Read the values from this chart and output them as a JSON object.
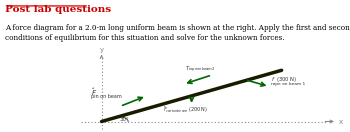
{
  "title": "Post lab questions",
  "body_text": "A force diagram for a 2.0-m long uniform beam is shown at the right. Apply the first and second\nconditions of equilibrium for this situation and solve for the unknown forces.",
  "title_color": "#cc0000",
  "text_color": "#000000",
  "bg_color": "#ffffff",
  "beam_color": "#1a1a00",
  "arrow_color": "#006600",
  "axis_color": "#888888",
  "angle_label": "30°",
  "label_pin": "pin on beam",
  "label_rope2": "rope on beam 2",
  "label_rope1": "rope on beam 1",
  "label_rope1_force": "(300 N)",
  "label_earth": "(200 N)",
  "label_earth_f": "F",
  "label_earth_sub": "cart on beam",
  "label_x": "x",
  "label_y": "y"
}
